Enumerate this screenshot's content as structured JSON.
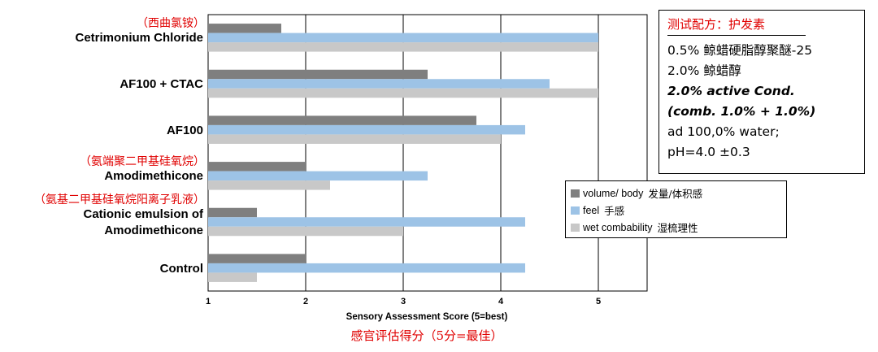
{
  "chart_data": {
    "type": "bar",
    "orientation": "horizontal",
    "categories": [
      "Cetrimonium Chloride",
      "AF100 + CTAC",
      "AF100",
      "Amodimethicone",
      "Cationic emulsion of Amodimethicone",
      "Control"
    ],
    "category_lines": [
      [
        "Cetrimonium Chloride"
      ],
      [
        "AF100 + CTAC"
      ],
      [
        "AF100"
      ],
      [
        "Amodimethicone"
      ],
      [
        "Cationic emulsion of",
        "Amodimethicone"
      ],
      [
        "Control"
      ]
    ],
    "category_cn": [
      "（西曲氯铵）",
      "",
      "",
      "（氨端聚二甲基硅氧烷）",
      "（氨基二甲基硅氧烷阳离子乳液）",
      ""
    ],
    "series": [
      {
        "name": "volume/ body",
        "name_cn": "发量/体积感",
        "color": "#7f7f7f",
        "values": [
          1.75,
          3.25,
          3.75,
          2.0,
          1.5,
          2.0
        ]
      },
      {
        "name": "feel",
        "name_cn": "手感",
        "color": "#9dc3e6",
        "values": [
          5.0,
          4.5,
          4.25,
          3.25,
          4.25,
          4.25
        ]
      },
      {
        "name": "wet combability",
        "name_cn": "湿梳理性",
        "color": "#c8c8c8",
        "values": [
          5.0,
          5.0,
          4.0,
          2.25,
          3.0,
          1.5
        ]
      }
    ],
    "xlim": [
      1,
      5.5
    ],
    "xticks": [
      1,
      2,
      3,
      4,
      5
    ],
    "xlabel": "Sensory Assessment Score (5=best)",
    "xlabel_cn": "感官评估得分（5分=最佳）",
    "grid": "vertical",
    "legend_position": "right"
  },
  "info_box": {
    "header": "测试配方：护发素",
    "lines": [
      "0.5% 鲸蜡硬脂醇聚醚-25",
      "2.0% 鲸蜡醇"
    ],
    "bold_lines": [
      "2.0% active Cond.",
      "(comb. 1.0% + 1.0%)"
    ],
    "tail_lines": [
      "ad 100,0% water;",
      "pH=4.0 ±0.3"
    ]
  },
  "legend_items": [
    {
      "en": "volume/ body",
      "cn": "发量/体积感"
    },
    {
      "en": "feel",
      "cn": "手感"
    },
    {
      "en": "wet combability",
      "cn": "湿梳理性"
    }
  ]
}
